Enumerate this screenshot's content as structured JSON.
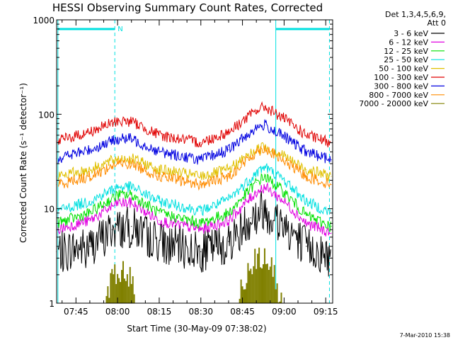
{
  "chart_data": {
    "type": "line",
    "title": "HESSI Observing Summary Count Rates, Corrected",
    "xlabel": "Start Time (30-May-09 07:38:02)",
    "ylabel": "Corrected Count Rate (s⁻¹ detector⁻¹)",
    "y_scale": "log",
    "ylim": [
      1,
      1000
    ],
    "xlim": [
      "07:38:02",
      "09:17:30"
    ],
    "x_ticks": [
      "07:45",
      "08:00",
      "08:15",
      "08:30",
      "08:45",
      "09:00",
      "09:15"
    ],
    "y_ticks": [
      "1",
      "10",
      "100",
      "1000"
    ],
    "legend_title": [
      "Det 1,3,4,5,6,9,",
      "Att 0"
    ],
    "legend_position": "top-right",
    "series": [
      {
        "name": "3 - 6 keV",
        "color": "#000000",
        "x": [
          "07:38",
          "07:50",
          "07:58",
          "08:05",
          "08:15",
          "08:30",
          "08:40",
          "08:48",
          "08:52",
          "09:00",
          "09:08",
          "09:17"
        ],
        "values": [
          3.5,
          4.0,
          6.0,
          6.5,
          4.5,
          3.5,
          4.5,
          8.0,
          10.0,
          7.0,
          4.0,
          3.0
        ]
      },
      {
        "name": "6 - 12 keV",
        "color": "#e000e0",
        "x": [
          "07:38",
          "07:50",
          "08:00",
          "08:05",
          "08:15",
          "08:30",
          "08:40",
          "08:50",
          "08:53",
          "09:00",
          "09:08",
          "09:17"
        ],
        "values": [
          6.0,
          7.5,
          11.5,
          11.5,
          7.5,
          6.0,
          7.5,
          15.0,
          17.0,
          12.0,
          7.0,
          5.5
        ]
      },
      {
        "name": "12 - 25 keV",
        "color": "#00e000",
        "x": [
          "07:38",
          "07:50",
          "08:00",
          "08:05",
          "08:15",
          "08:30",
          "08:40",
          "08:50",
          "08:53",
          "09:00",
          "09:08",
          "09:17"
        ],
        "values": [
          7.0,
          9.0,
          14.0,
          14.0,
          9.0,
          7.0,
          9.0,
          19.0,
          22.0,
          15.0,
          8.5,
          6.5
        ]
      },
      {
        "name": "25 - 50 keV",
        "color": "#00e0e0",
        "x": [
          "07:38",
          "07:50",
          "08:00",
          "08:05",
          "08:15",
          "08:30",
          "08:40",
          "08:50",
          "08:53",
          "09:00",
          "09:08",
          "09:17"
        ],
        "values": [
          9.5,
          12.0,
          17.0,
          17.0,
          12.0,
          9.5,
          12.5,
          24.0,
          28.0,
          20.0,
          12.0,
          9.0
        ]
      },
      {
        "name": "50 - 100 keV",
        "color": "#e0c000",
        "x": [
          "07:38",
          "07:50",
          "08:00",
          "08:05",
          "08:15",
          "08:30",
          "08:40",
          "08:50",
          "08:53",
          "09:00",
          "09:08",
          "09:17"
        ],
        "values": [
          22.0,
          26.0,
          34.0,
          34.0,
          26.0,
          22.0,
          26.0,
          42.0,
          46.0,
          36.0,
          26.0,
          22.0
        ]
      },
      {
        "name": "100 - 300 keV",
        "color": "#e00000",
        "x": [
          "07:38",
          "07:50",
          "08:00",
          "08:05",
          "08:15",
          "08:30",
          "08:40",
          "08:50",
          "08:53",
          "09:00",
          "09:08",
          "09:17"
        ],
        "values": [
          52.0,
          65.0,
          85.0,
          84.0,
          60.0,
          50.0,
          65.0,
          110.0,
          120.0,
          90.0,
          60.0,
          50.0
        ]
      },
      {
        "name": "300 - 800 keV",
        "color": "#0000e0",
        "x": [
          "07:38",
          "07:50",
          "08:00",
          "08:05",
          "08:15",
          "08:30",
          "08:40",
          "08:50",
          "08:53",
          "09:00",
          "09:08",
          "09:17"
        ],
        "values": [
          34.0,
          42.0,
          55.0,
          55.0,
          40.0,
          33.0,
          42.0,
          72.0,
          77.0,
          58.0,
          40.0,
          33.0
        ]
      },
      {
        "name": "800 - 7000 keV",
        "color": "#ff8c00",
        "x": [
          "07:38",
          "07:50",
          "08:00",
          "08:05",
          "08:15",
          "08:30",
          "08:40",
          "08:50",
          "08:53",
          "09:00",
          "09:08",
          "09:17"
        ],
        "values": [
          18.0,
          22.0,
          30.0,
          30.0,
          22.0,
          18.0,
          22.0,
          40.0,
          44.0,
          32.0,
          22.0,
          18.0
        ]
      },
      {
        "name": "7000 - 20000 keV",
        "color": "#808000",
        "x": [
          "07:55",
          "07:58",
          "08:00",
          "08:02",
          "08:05",
          "08:07",
          "08:43",
          "08:47",
          "08:50",
          "08:53",
          "08:56",
          "08:59"
        ],
        "values": [
          1.0,
          1.8,
          2.2,
          2.2,
          1.8,
          1.0,
          1.0,
          2.3,
          3.0,
          3.0,
          2.2,
          1.0
        ]
      }
    ],
    "markers": {
      "color": "#00e0e0",
      "vertical_solid": [
        "07:38:30",
        "08:57:00"
      ],
      "vertical_dashed": [
        "07:59:00",
        "09:16:20"
      ],
      "flag_label": "N",
      "flag_segments": [
        [
          "07:38:30",
          "07:59:00"
        ],
        [
          "08:57:00",
          "09:16:20"
        ]
      ]
    },
    "grid": false
  },
  "footer": {
    "timestamp": "7-Mar-2010 15:38"
  }
}
